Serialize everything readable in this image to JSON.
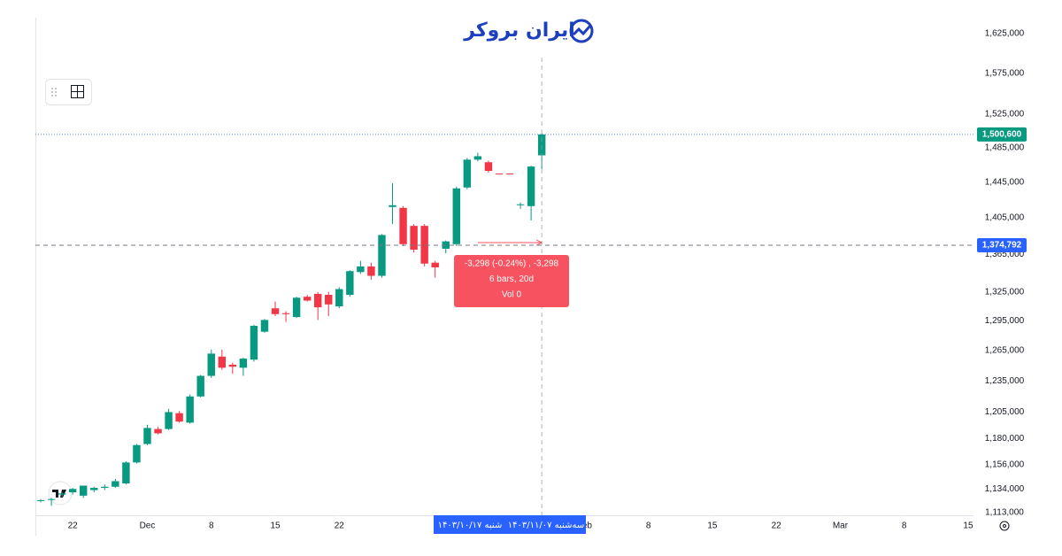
{
  "chart_data": {
    "type": "candlestick",
    "log_scale": true,
    "logo": "ایران بروکر",
    "up_color": "#089981",
    "down_color": "#f23645",
    "x": [
      0,
      1,
      2,
      3,
      4,
      5,
      6,
      7,
      8,
      9,
      10,
      11,
      12,
      13,
      14,
      15,
      16,
      17,
      18,
      19,
      20,
      21,
      22,
      23,
      24,
      25,
      26,
      27,
      28,
      29,
      30,
      31,
      32,
      33,
      34,
      35,
      36,
      37,
      38,
      39,
      40,
      41,
      42,
      43,
      44,
      45,
      46,
      47
    ],
    "open": [
      1124000,
      1125000,
      1129000,
      1131000,
      1128000,
      1133000,
      1135000,
      1136000,
      1139000,
      1158000,
      1175000,
      1189000,
      1189000,
      1204000,
      1195000,
      1220000,
      1240000,
      1259000,
      1251000,
      1248000,
      1256000,
      1284000,
      1308000,
      1303000,
      1299000,
      1320000,
      1323000,
      1322000,
      1310000,
      1322000,
      1346000,
      1352000,
      1342000,
      1417000,
      1416000,
      1396000,
      1396000,
      1356000,
      1371000,
      1376000,
      1439000,
      1471000,
      1468000,
      1455000,
      1455000,
      1419000,
      1418000,
      1476000
    ],
    "high": [
      1125000,
      1126000,
      1131000,
      1135000,
      1137000,
      1136000,
      1138000,
      1143000,
      1159000,
      1175000,
      1193000,
      1191000,
      1208000,
      1206000,
      1222000,
      1241000,
      1266000,
      1266000,
      1253000,
      1258000,
      1291000,
      1297000,
      1315000,
      1305000,
      1320000,
      1322000,
      1325000,
      1325000,
      1330000,
      1348000,
      1358000,
      1356000,
      1387000,
      1444000,
      1418000,
      1398000,
      1398000,
      1358000,
      1380000,
      1440000,
      1473000,
      1479000,
      1470000,
      1455000,
      1455000,
      1422000,
      1464000,
      1502000
    ],
    "low": [
      1122000,
      1119000,
      1127000,
      1129000,
      1126000,
      1131000,
      1133000,
      1135000,
      1138000,
      1157000,
      1174000,
      1184000,
      1188000,
      1195000,
      1194000,
      1219000,
      1238000,
      1246000,
      1242000,
      1240000,
      1254000,
      1283000,
      1300000,
      1294000,
      1298000,
      1315000,
      1296000,
      1300000,
      1308000,
      1320000,
      1344000,
      1338000,
      1340000,
      1398000,
      1374000,
      1367000,
      1352000,
      1340000,
      1366000,
      1374000,
      1437000,
      1469000,
      1456000,
      1454000,
      1454000,
      1415000,
      1402000,
      1460000
    ],
    "close": [
      1124000,
      1125000,
      1130000,
      1134000,
      1137000,
      1135000,
      1136000,
      1141000,
      1158000,
      1174000,
      1190000,
      1185000,
      1205000,
      1196000,
      1220000,
      1240000,
      1262000,
      1248000,
      1249000,
      1257000,
      1290000,
      1296000,
      1302000,
      1302000,
      1319000,
      1316000,
      1309000,
      1312000,
      1328000,
      1347000,
      1352000,
      1342000,
      1386000,
      1419000,
      1376000,
      1370000,
      1355000,
      1351000,
      1379000,
      1438000,
      1471000,
      1475000,
      1458000,
      1454000,
      1454000,
      1420000,
      1463000,
      1500600
    ],
    "xlim": [
      -0.5,
      87.5
    ],
    "xticks": [
      {
        "value": 3,
        "label": "22"
      },
      {
        "value": 10,
        "label": "Dec"
      },
      {
        "value": 16,
        "label": "8"
      },
      {
        "value": 22,
        "label": "15"
      },
      {
        "value": 28,
        "label": "22"
      },
      {
        "value": 51,
        "label": "Feb"
      },
      {
        "value": 57,
        "label": "8"
      },
      {
        "value": 63,
        "label": "15"
      },
      {
        "value": 69,
        "label": "22"
      },
      {
        "value": 75,
        "label": "Mar"
      },
      {
        "value": 81,
        "label": "8"
      },
      {
        "value": 87,
        "label": "15"
      }
    ],
    "ylim": [
      1113000,
      1625000
    ],
    "yticks": [
      {
        "value": 1113000,
        "label": "1,113,000"
      },
      {
        "value": 1134000,
        "label": "1,134,000"
      },
      {
        "value": 1156000,
        "label": "1,156,000"
      },
      {
        "value": 1180000,
        "label": "1,180,000"
      },
      {
        "value": 1205000,
        "label": "1,205,000"
      },
      {
        "value": 1235000,
        "label": "1,235,000"
      },
      {
        "value": 1265000,
        "label": "1,265,000"
      },
      {
        "value": 1295000,
        "label": "1,295,000"
      },
      {
        "value": 1325000,
        "label": "1,325,000"
      },
      {
        "value": 1365000,
        "label": "1,365,000"
      },
      {
        "value": 1405000,
        "label": "1,405,000"
      },
      {
        "value": 1445000,
        "label": "1,445,000"
      },
      {
        "value": 1485000,
        "label": "1,485,000"
      },
      {
        "value": 1525000,
        "label": "1,525,000"
      },
      {
        "value": 1575000,
        "label": "1,575,000"
      },
      {
        "value": 1625000,
        "label": "1,625,000"
      }
    ],
    "last_price": {
      "value": 1500600,
      "label": "1,500,600"
    },
    "crosshair": {
      "value": 1374792,
      "label": "1,374,792"
    },
    "date_range": [
      "شنبه ۱۴۰۳/۱۰/۱۷",
      "سه‌شنبه ۱۴۰۳/۱۱/۰۷"
    ],
    "measure": [
      "-3,298 (-0.24%) , -3,298",
      "6 bars, 20d",
      "Vol 0"
    ]
  }
}
